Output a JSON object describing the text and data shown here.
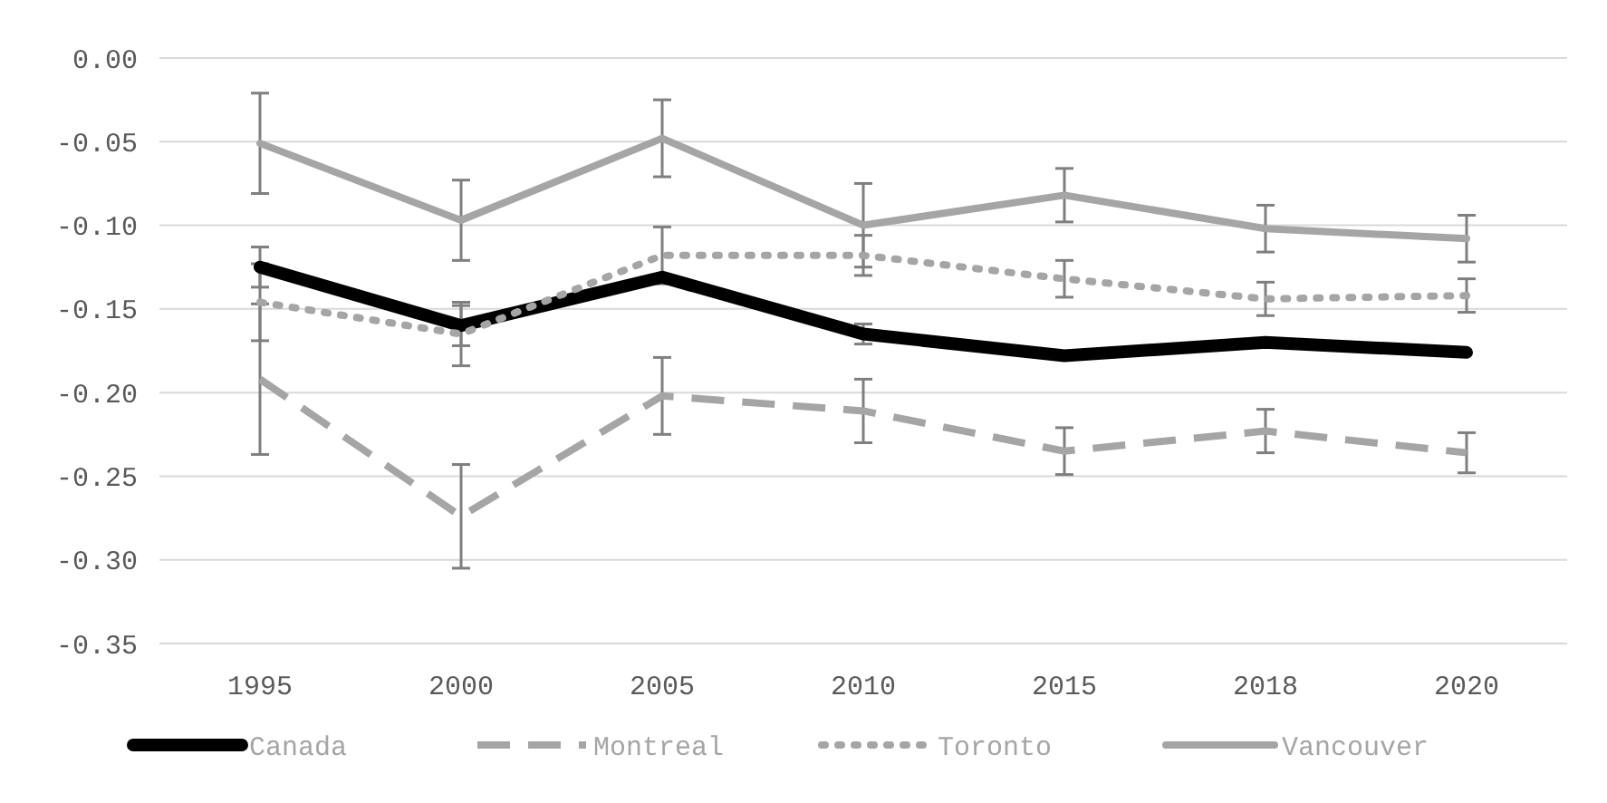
{
  "chart_data": {
    "type": "line",
    "categories": [
      "1995",
      "2000",
      "2005",
      "2010",
      "2015",
      "2018",
      "2020"
    ],
    "series": [
      {
        "name": "Canada",
        "color": "#000000",
        "line_style": "solid",
        "values": [
          -0.125,
          -0.16,
          -0.131,
          -0.165,
          -0.178,
          -0.17,
          -0.176
        ],
        "errors": [
          0.012,
          0.012,
          null,
          0.006,
          null,
          null,
          null
        ]
      },
      {
        "name": "Montreal",
        "color": "#a5a5a5",
        "line_style": "dashed",
        "values": [
          -0.192,
          -0.274,
          -0.202,
          -0.211,
          -0.235,
          -0.223,
          -0.236
        ],
        "errors": [
          0.045,
          0.031,
          0.023,
          0.019,
          0.014,
          0.013,
          0.012
        ]
      },
      {
        "name": "Toronto",
        "color": "#a5a5a5",
        "line_style": "dotted",
        "values": [
          -0.146,
          -0.165,
          -0.118,
          -0.118,
          -0.132,
          -0.144,
          -0.142
        ],
        "errors": [
          0.023,
          0.019,
          0.017,
          0.012,
          0.011,
          0.01,
          0.01
        ]
      },
      {
        "name": "Vancouver",
        "color": "#a5a5a5",
        "line_style": "solid",
        "values": [
          -0.051,
          -0.097,
          -0.048,
          -0.1,
          -0.082,
          -0.102,
          -0.108
        ],
        "errors": [
          0.03,
          0.024,
          0.023,
          0.025,
          0.016,
          0.014,
          0.014
        ]
      }
    ],
    "ylim": [
      -0.35,
      0
    ],
    "yticks": [
      {
        "value": 0,
        "label": "0.00"
      },
      {
        "value": -0.05,
        "label": "-0.05"
      },
      {
        "value": -0.1,
        "label": "-0.10"
      },
      {
        "value": -0.15,
        "label": "-0.15"
      },
      {
        "value": -0.2,
        "label": "-0.20"
      },
      {
        "value": -0.25,
        "label": "-0.25"
      },
      {
        "value": -0.3,
        "label": "-0.30"
      },
      {
        "value": -0.35,
        "label": "-0.35"
      }
    ],
    "grid": "y",
    "legend": "bottom",
    "marker": "none"
  }
}
